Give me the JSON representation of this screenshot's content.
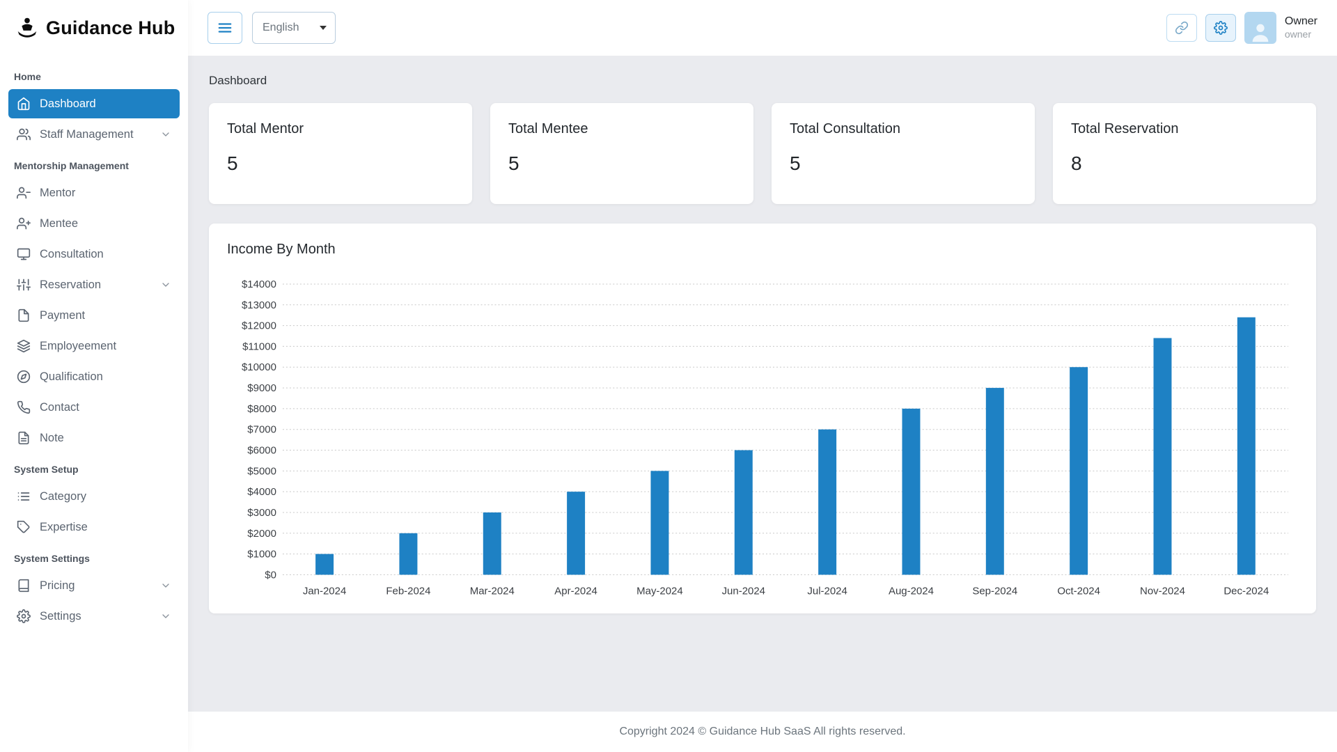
{
  "app": {
    "logo_text": "Guidance Hub"
  },
  "topbar": {
    "language_selected": "English",
    "user_name": "Owner",
    "user_role": "owner"
  },
  "breadcrumb": "Dashboard",
  "sidebar": {
    "headings": {
      "home": "Home",
      "mentorship": "Mentorship Management",
      "system_setup": "System Setup",
      "system_settings": "System Settings"
    },
    "items": {
      "dashboard": "Dashboard",
      "staff_management": "Staff Management",
      "mentor": "Mentor",
      "mentee": "Mentee",
      "consultation": "Consultation",
      "reservation": "Reservation",
      "payment": "Payment",
      "employeement": "Employeement",
      "qualification": "Qualification",
      "contact": "Contact",
      "note": "Note",
      "category": "Category",
      "expertise": "Expertise",
      "pricing": "Pricing",
      "settings": "Settings"
    }
  },
  "stats": [
    {
      "label": "Total Mentor",
      "value": "5"
    },
    {
      "label": "Total Mentee",
      "value": "5"
    },
    {
      "label": "Total Consultation",
      "value": "5"
    },
    {
      "label": "Total Reservation",
      "value": "8"
    }
  ],
  "chart_data": {
    "type": "bar",
    "title": "Income By Month",
    "categories": [
      "Jan-2024",
      "Feb-2024",
      "Mar-2024",
      "Apr-2024",
      "May-2024",
      "Jun-2024",
      "Jul-2024",
      "Aug-2024",
      "Sep-2024",
      "Oct-2024",
      "Nov-2024",
      "Dec-2024"
    ],
    "values": [
      1000,
      2000,
      3000,
      4000,
      5000,
      6000,
      7000,
      8000,
      9000,
      10000,
      11400,
      12400
    ],
    "ylabel_prefix": "$",
    "ylim": [
      0,
      14000
    ],
    "ytick_step": 1000,
    "bar_color": "#1e81c4",
    "grid": "horizontal-dotted",
    "legend": "none",
    "xlabel": "",
    "ylabel": ""
  },
  "footer": {
    "copyright": "Copyright 2024 © Guidance Hub SaaS All rights reserved."
  },
  "colors": {
    "accent": "#1e81c4",
    "sidebar_active_bg": "#1e81c4",
    "main_bg": "#eaebef",
    "bar": "#1e81c4"
  }
}
